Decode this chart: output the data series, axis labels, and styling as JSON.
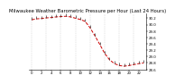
{
  "title": "Milwaukee Weather Barometric Pressure per Hour (Last 24 Hours)",
  "hours": [
    0,
    1,
    2,
    3,
    4,
    5,
    6,
    7,
    8,
    9,
    10,
    11,
    12,
    13,
    14,
    15,
    16,
    17,
    18,
    19,
    20,
    21,
    22,
    23
  ],
  "pressure": [
    30.15,
    30.18,
    30.19,
    30.21,
    30.22,
    30.24,
    30.25,
    30.26,
    30.24,
    30.2,
    30.16,
    30.1,
    29.9,
    29.65,
    29.38,
    29.1,
    28.9,
    28.78,
    28.72,
    28.7,
    28.72,
    28.75,
    28.78,
    28.8
  ],
  "line_color": "#cc0000",
  "marker_color": "#333333",
  "bg_color": "#ffffff",
  "grid_color": "#999999",
  "ylim_min": 28.6,
  "ylim_max": 30.35,
  "ytick_step": 0.2,
  "title_fontsize": 3.8,
  "tick_fontsize": 2.8,
  "linewidth": 0.7,
  "markersize": 2.5
}
